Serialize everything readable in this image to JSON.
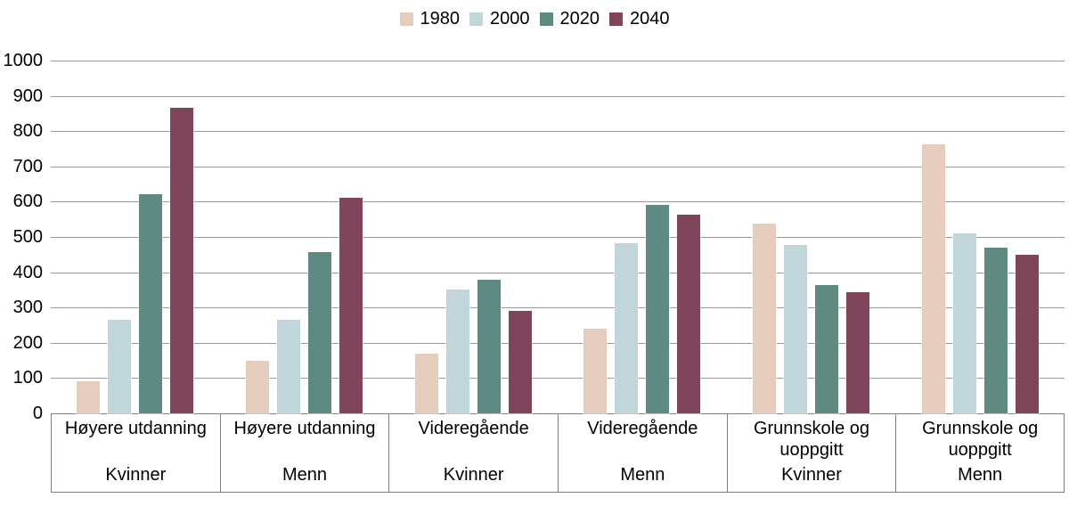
{
  "chart_data": {
    "type": "bar",
    "title": "",
    "legend_position": "top",
    "grid": true,
    "ylabel": "",
    "xlabel": "",
    "y_axis": {
      "min": 0,
      "max": 1000,
      "tick_step": 100,
      "ticks": [
        0,
        100,
        200,
        300,
        400,
        500,
        600,
        700,
        800,
        900,
        1000
      ]
    },
    "categories": [
      {
        "education": "Høyere utdanning",
        "gender": "Kvinner"
      },
      {
        "education": "Høyere utdanning",
        "gender": "Menn"
      },
      {
        "education": "Videregående",
        "gender": "Kvinner"
      },
      {
        "education": "Videregående",
        "gender": "Menn"
      },
      {
        "education": "Grunnskole og uoppgitt",
        "gender": "Kvinner"
      },
      {
        "education": "Grunnskole og uoppgitt",
        "gender": "Menn"
      }
    ],
    "series": [
      {
        "name": "1980",
        "color": "#e6ccbd",
        "values": [
          90,
          148,
          170,
          240,
          537,
          762
        ]
      },
      {
        "name": "2000",
        "color": "#c1d6da",
        "values": [
          265,
          265,
          350,
          483,
          477,
          510
        ]
      },
      {
        "name": "2020",
        "color": "#5e8a82",
        "values": [
          620,
          458,
          378,
          590,
          363,
          470
        ]
      },
      {
        "name": "2040",
        "color": "#7f455a",
        "values": [
          865,
          610,
          290,
          563,
          343,
          450
        ]
      }
    ]
  },
  "style": {
    "gridline_color": "#9a9a9a",
    "axis_border_color": "#7f7f7f",
    "text_color": "#000000",
    "background_color": "#ffffff"
  }
}
